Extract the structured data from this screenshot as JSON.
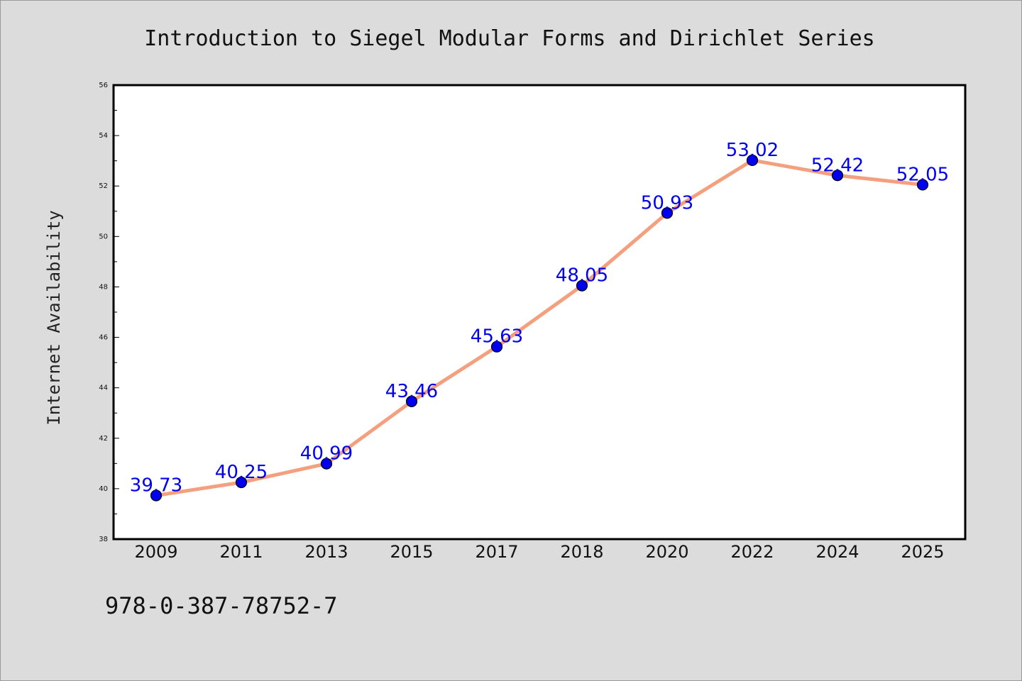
{
  "chart_data": {
    "type": "line",
    "title": "Introduction to Siegel Modular Forms and Dirichlet Series",
    "xlabel": "",
    "ylabel": "Internet Availability",
    "categories": [
      "2009",
      "2011",
      "2013",
      "2015",
      "2017",
      "2018",
      "2020",
      "2022",
      "2024",
      "2025"
    ],
    "series": [
      {
        "values": [
          39.73,
          40.25,
          40.99,
          43.46,
          45.63,
          48.05,
          50.93,
          53.02,
          52.42,
          52.05
        ],
        "labels": [
          "39.73",
          "40.25",
          "40.99",
          "43.46",
          "45.63",
          "48.05",
          "50.93",
          "53.02",
          "52.42",
          "52.05"
        ],
        "line_color": "#f4a07e",
        "marker_color": "#0000ee"
      }
    ],
    "ylim": [
      38,
      56
    ],
    "yticks": [
      38,
      40,
      42,
      44,
      46,
      48,
      50,
      52,
      54,
      56
    ],
    "grid": false,
    "legend": "none"
  },
  "footer": {
    "isbn": "978-0-387-78752-7"
  }
}
